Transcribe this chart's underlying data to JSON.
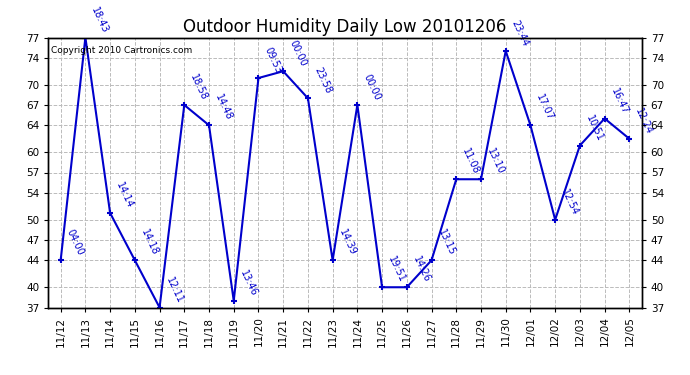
{
  "title": "Outdoor Humidity Daily Low 20101206",
  "copyright": "Copyright 2010 Cartronics.com",
  "x_labels": [
    "11/12",
    "11/13",
    "11/14",
    "11/15",
    "11/16",
    "11/17",
    "11/18",
    "11/19",
    "11/20",
    "11/21",
    "11/22",
    "11/23",
    "11/24",
    "11/25",
    "11/26",
    "11/27",
    "11/28",
    "11/29",
    "11/30",
    "12/01",
    "12/02",
    "12/03",
    "12/04",
    "12/05"
  ],
  "y_values": [
    44,
    77,
    51,
    44,
    37,
    67,
    64,
    38,
    71,
    72,
    68,
    44,
    67,
    40,
    40,
    44,
    56,
    56,
    75,
    64,
    50,
    61,
    65,
    62
  ],
  "point_labels": [
    "04:00",
    "18:43",
    "14:14",
    "14:18",
    "12:11",
    "18:58",
    "14:48",
    "13:46",
    "09:53",
    "00:00",
    "23:58",
    "14:39",
    "00:00",
    "19:51",
    "14:26",
    "13:15",
    "11:08",
    "13:10",
    "23:44",
    "17:07",
    "12:54",
    "10:51",
    "16:47",
    "12:24"
  ],
  "ylim_min": 37,
  "ylim_max": 77,
  "yticks": [
    37,
    40,
    44,
    47,
    50,
    54,
    57,
    60,
    64,
    67,
    70,
    74,
    77
  ],
  "line_color": "#0000cc",
  "background_color": "#ffffff",
  "grid_color": "#bbbbbb",
  "title_fontsize": 12,
  "label_fontsize": 7,
  "tick_fontsize": 7.5
}
